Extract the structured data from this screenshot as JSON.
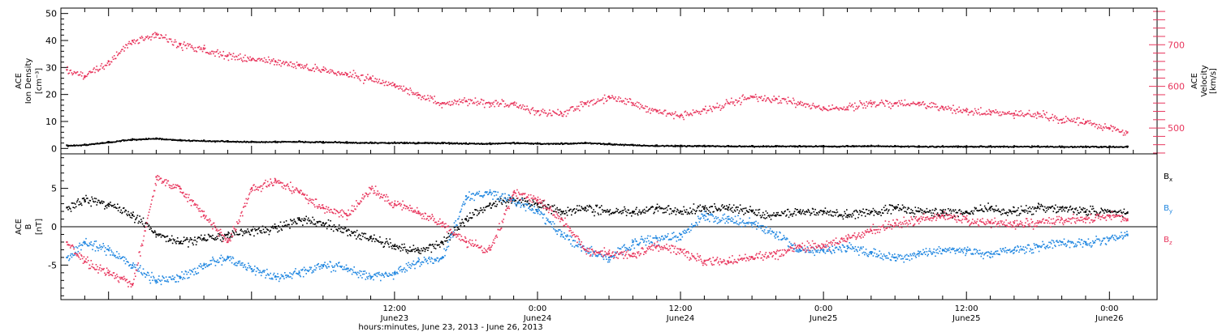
{
  "colors": {
    "axis": "#000000",
    "density": "#000000",
    "velocity": "#e8365d",
    "bx": "#000000",
    "by": "#1f86e0",
    "bz": "#e8365d"
  },
  "chart_data": [
    {
      "type": "scatter",
      "panel": "top",
      "ylabel_lines": [
        "ACE",
        "Ion Density",
        "[cm⁻³]"
      ],
      "y2label_lines": [
        "ACE",
        "Velocity",
        "[km/s]"
      ],
      "ylim": [
        -2,
        52
      ],
      "yticks": [
        "0",
        "10",
        "20",
        "30",
        "40",
        "50"
      ],
      "y2lim": [
        438,
        788
      ],
      "y2ticks": [
        "500",
        "600",
        "700"
      ],
      "xlim_hours": [
        -16,
        76
      ],
      "series": [
        {
          "key": "density",
          "axis": "left",
          "t": [
            -15.5,
            -14,
            -12,
            -10,
            -8,
            -6,
            -4,
            -2,
            0,
            2,
            4,
            6,
            8,
            10,
            12,
            14,
            16,
            18,
            20,
            22,
            24,
            26,
            28,
            30,
            32,
            34,
            36,
            38,
            40,
            42,
            44,
            46,
            48,
            50,
            52,
            54,
            56,
            58,
            60,
            62,
            64,
            66,
            68,
            70,
            72,
            73.5
          ],
          "values": [
            1.2,
            1.5,
            2.5,
            3.5,
            3.8,
            3.2,
            3.0,
            2.8,
            2.6,
            2.6,
            2.7,
            2.5,
            2.4,
            2.3,
            2.3,
            2.2,
            2.2,
            2.0,
            2.0,
            2.2,
            2.0,
            2.0,
            2.2,
            1.8,
            1.4,
            1.2,
            1.1,
            1.1,
            1.0,
            1.0,
            1.0,
            1.0,
            1.0,
            1.0,
            1.1,
            1.0,
            0.9,
            0.9,
            0.9,
            0.9,
            0.9,
            0.9,
            0.8,
            0.8,
            0.8,
            0.8
          ]
        },
        {
          "key": "velocity",
          "axis": "right",
          "t": [
            -15.5,
            -14,
            -12,
            -10,
            -8,
            -6,
            -4,
            -2,
            0,
            2,
            4,
            6,
            8,
            10,
            12,
            14,
            16,
            18,
            20,
            22,
            24,
            26,
            28,
            30,
            32,
            34,
            36,
            38,
            40,
            42,
            44,
            46,
            48,
            50,
            52,
            54,
            56,
            58,
            60,
            62,
            64,
            66,
            68,
            70,
            72,
            73.5
          ],
          "values": [
            640,
            625,
            660,
            710,
            725,
            700,
            690,
            675,
            665,
            660,
            650,
            640,
            630,
            618,
            605,
            580,
            560,
            565,
            560,
            560,
            540,
            535,
            560,
            575,
            560,
            540,
            530,
            545,
            560,
            575,
            570,
            560,
            550,
            550,
            560,
            560,
            560,
            550,
            540,
            540,
            535,
            535,
            520,
            515,
            500,
            490
          ]
        }
      ]
    },
    {
      "type": "scatter",
      "panel": "bottom",
      "ylabel_lines": [
        "ACE",
        "B",
        "[nT]"
      ],
      "ylim": [
        -9.5,
        9.5
      ],
      "yticks": [
        "-5",
        "0",
        "5"
      ],
      "xlim_hours": [
        -16,
        76
      ],
      "xticks": [
        {
          "h": 12,
          "time": "12:00",
          "date": "June23"
        },
        {
          "h": 24,
          "time": "0:00",
          "date": "June24"
        },
        {
          "h": 36,
          "time": "12:00",
          "date": "June24"
        },
        {
          "h": 48,
          "time": "0:00",
          "date": "June25"
        },
        {
          "h": 60,
          "time": "12:00",
          "date": "June25"
        },
        {
          "h": 72,
          "time": "0:00",
          "date": "June26"
        }
      ],
      "xlabel": "hours:minutes, June 23, 2013 - June 26, 2013",
      "legend": [
        {
          "key": "bx",
          "base": "B",
          "sub": "x"
        },
        {
          "key": "by",
          "base": "B",
          "sub": "y"
        },
        {
          "key": "bz",
          "base": "B",
          "sub": "z"
        }
      ],
      "series": [
        {
          "key": "bx",
          "t": [
            -15.5,
            -14,
            -12,
            -10,
            -8,
            -6,
            -4,
            -2,
            0,
            2,
            4,
            6,
            8,
            10,
            12,
            14,
            16,
            18,
            20,
            22,
            24,
            26,
            28,
            30,
            32,
            34,
            36,
            38,
            40,
            42,
            44,
            46,
            48,
            50,
            52,
            54,
            56,
            58,
            60,
            62,
            64,
            66,
            68,
            70,
            72,
            73.5
          ],
          "values": [
            2.5,
            3.5,
            3.0,
            1.5,
            -1.0,
            -2.0,
            -1.5,
            -1.0,
            -0.5,
            0.0,
            1.0,
            0.5,
            -0.5,
            -1.5,
            -2.5,
            -3.0,
            -2.0,
            1.0,
            3.0,
            3.5,
            3.0,
            2.0,
            2.5,
            2.0,
            2.0,
            2.5,
            2.0,
            2.5,
            2.5,
            2.0,
            1.5,
            2.0,
            2.0,
            1.5,
            2.0,
            2.5,
            2.0,
            2.0,
            2.0,
            2.5,
            2.0,
            2.5,
            2.5,
            2.0,
            2.0,
            1.8
          ]
        },
        {
          "key": "by",
          "t": [
            -15.5,
            -14,
            -12,
            -10,
            -8,
            -6,
            -4,
            -2,
            0,
            2,
            4,
            6,
            8,
            10,
            12,
            14,
            16,
            18,
            20,
            22,
            24,
            26,
            28,
            30,
            32,
            34,
            36,
            38,
            40,
            42,
            44,
            46,
            48,
            50,
            52,
            54,
            56,
            58,
            60,
            62,
            64,
            66,
            68,
            70,
            72,
            73.5
          ],
          "values": [
            -4.0,
            -2.0,
            -3.0,
            -5.0,
            -7.0,
            -6.5,
            -5.0,
            -4.0,
            -5.5,
            -6.5,
            -6.0,
            -5.0,
            -5.5,
            -6.5,
            -6.0,
            -4.5,
            -4.0,
            4.0,
            4.5,
            3.5,
            2.0,
            -1.0,
            -3.0,
            -4.0,
            -2.0,
            -1.5,
            -1.0,
            1.5,
            1.0,
            0.5,
            -1.0,
            -3.0,
            -3.0,
            -2.5,
            -3.5,
            -4.0,
            -3.5,
            -3.0,
            -3.0,
            -3.5,
            -3.0,
            -2.5,
            -2.0,
            -2.0,
            -1.5,
            -1.0
          ]
        },
        {
          "key": "bz",
          "t": [
            -15.5,
            -14,
            -12,
            -10,
            -8,
            -6,
            -4,
            -2,
            0,
            2,
            4,
            6,
            8,
            10,
            12,
            14,
            16,
            18,
            20,
            22,
            24,
            26,
            28,
            30,
            32,
            34,
            36,
            38,
            40,
            42,
            44,
            46,
            48,
            50,
            52,
            54,
            56,
            58,
            60,
            62,
            64,
            66,
            68,
            70,
            72,
            73.5
          ],
          "values": [
            -2.0,
            -4.5,
            -6.0,
            -7.5,
            6.5,
            5.0,
            1.5,
            -2.0,
            5.0,
            6.0,
            4.5,
            2.5,
            1.5,
            5.0,
            3.0,
            2.0,
            0.5,
            -2.0,
            -3.0,
            4.5,
            3.5,
            1.0,
            -3.0,
            -3.5,
            -3.5,
            -2.5,
            -3.0,
            -4.5,
            -4.5,
            -4.0,
            -3.5,
            -2.5,
            -2.5,
            -1.5,
            -0.5,
            0.5,
            1.0,
            1.5,
            1.0,
            0.5,
            0.5,
            0.5,
            1.0,
            1.0,
            1.5,
            1.0
          ]
        }
      ]
    }
  ]
}
